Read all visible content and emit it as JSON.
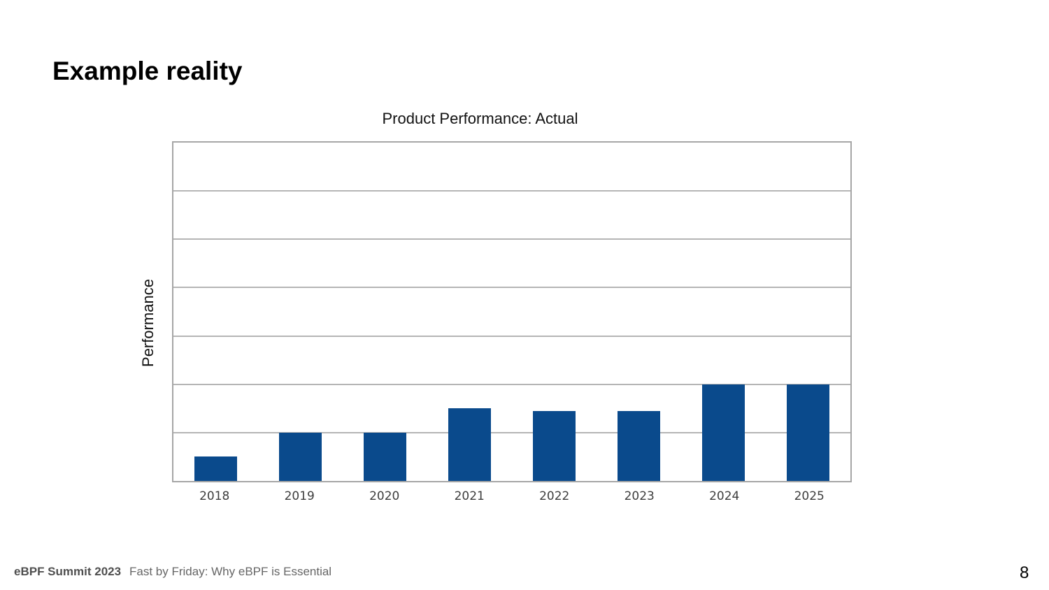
{
  "slide": {
    "title": "Example reality",
    "page_number": "8"
  },
  "chart_data": {
    "type": "bar",
    "title": "Product Performance: Actual",
    "xlabel": "",
    "ylabel": "Performance",
    "categories": [
      "2018",
      "2019",
      "2020",
      "2021",
      "2022",
      "2023",
      "2024",
      "2025"
    ],
    "values": [
      0.5,
      1,
      1,
      1.5,
      1.45,
      1.45,
      2,
      2
    ],
    "ylim": [
      0,
      7
    ],
    "y_tick_labels": "none",
    "grid": "horizontal gridlines at every unit",
    "legend": "none",
    "bar_color": "#0a4a8c",
    "axis_border_color": "#a6a6a6",
    "gridline_color": "#b5b5b5"
  },
  "footer": {
    "conference": "eBPF Summit 2023",
    "talk_title": "Fast by Friday: Why eBPF is Essential"
  }
}
